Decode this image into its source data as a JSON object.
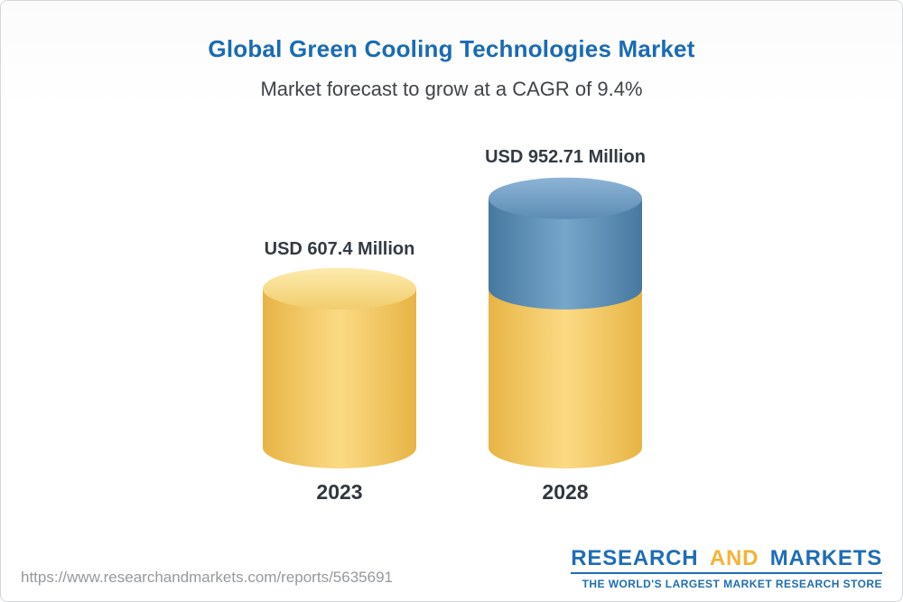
{
  "header": {
    "title": "Global Green Cooling Technologies Market",
    "subtitle": "Market forecast to grow at a CAGR of 9.4%"
  },
  "chart_data": {
    "type": "bar",
    "variant": "3d-cylinder-stacked",
    "title": "Global Green Cooling Technologies Market",
    "subtitle": "Market forecast to grow at a CAGR of 9.4%",
    "cagr_percent": 9.4,
    "unit": "USD Million",
    "categories": [
      "2023",
      "2028"
    ],
    "series": [
      {
        "name": "base-value-2023",
        "color": "#F5CE6E",
        "values": [
          607.4,
          607.4
        ]
      },
      {
        "name": "forecast-growth",
        "color": "#6B9CC3",
        "values": [
          0,
          345.31
        ]
      }
    ],
    "totals": [
      607.4,
      952.71
    ],
    "value_labels": [
      "USD 607.4 Million",
      "USD 952.71 Million"
    ],
    "xlabel": "",
    "ylabel": "",
    "ylim": [
      0,
      1000
    ],
    "grid": false,
    "legend": "none"
  },
  "footer": {
    "url": "https://www.researchandmarkets.com/reports/5635691",
    "logo": {
      "word1": "RESEARCH",
      "word2": "AND",
      "word3": "MARKETS",
      "tagline": "THE WORLD'S LARGEST MARKET RESEARCH STORE"
    }
  },
  "colors": {
    "title_blue": "#1A6BB3",
    "text_dark": "#333A42",
    "yellow_body_edge": "#E7B445",
    "yellow_body_center": "#FBDA84",
    "yellow_cap_light": "#FDEBAE",
    "yellow_cap_dark": "#F1CD6D",
    "blue_body_edge": "#47789F",
    "blue_body_center": "#76A6CA",
    "blue_cap_light": "#8DB4D6",
    "blue_cap_dark": "#5D8CB4",
    "url_gray": "#96999C",
    "logo_blue": "#1F6DB6",
    "logo_yellow": "#F5B335"
  }
}
